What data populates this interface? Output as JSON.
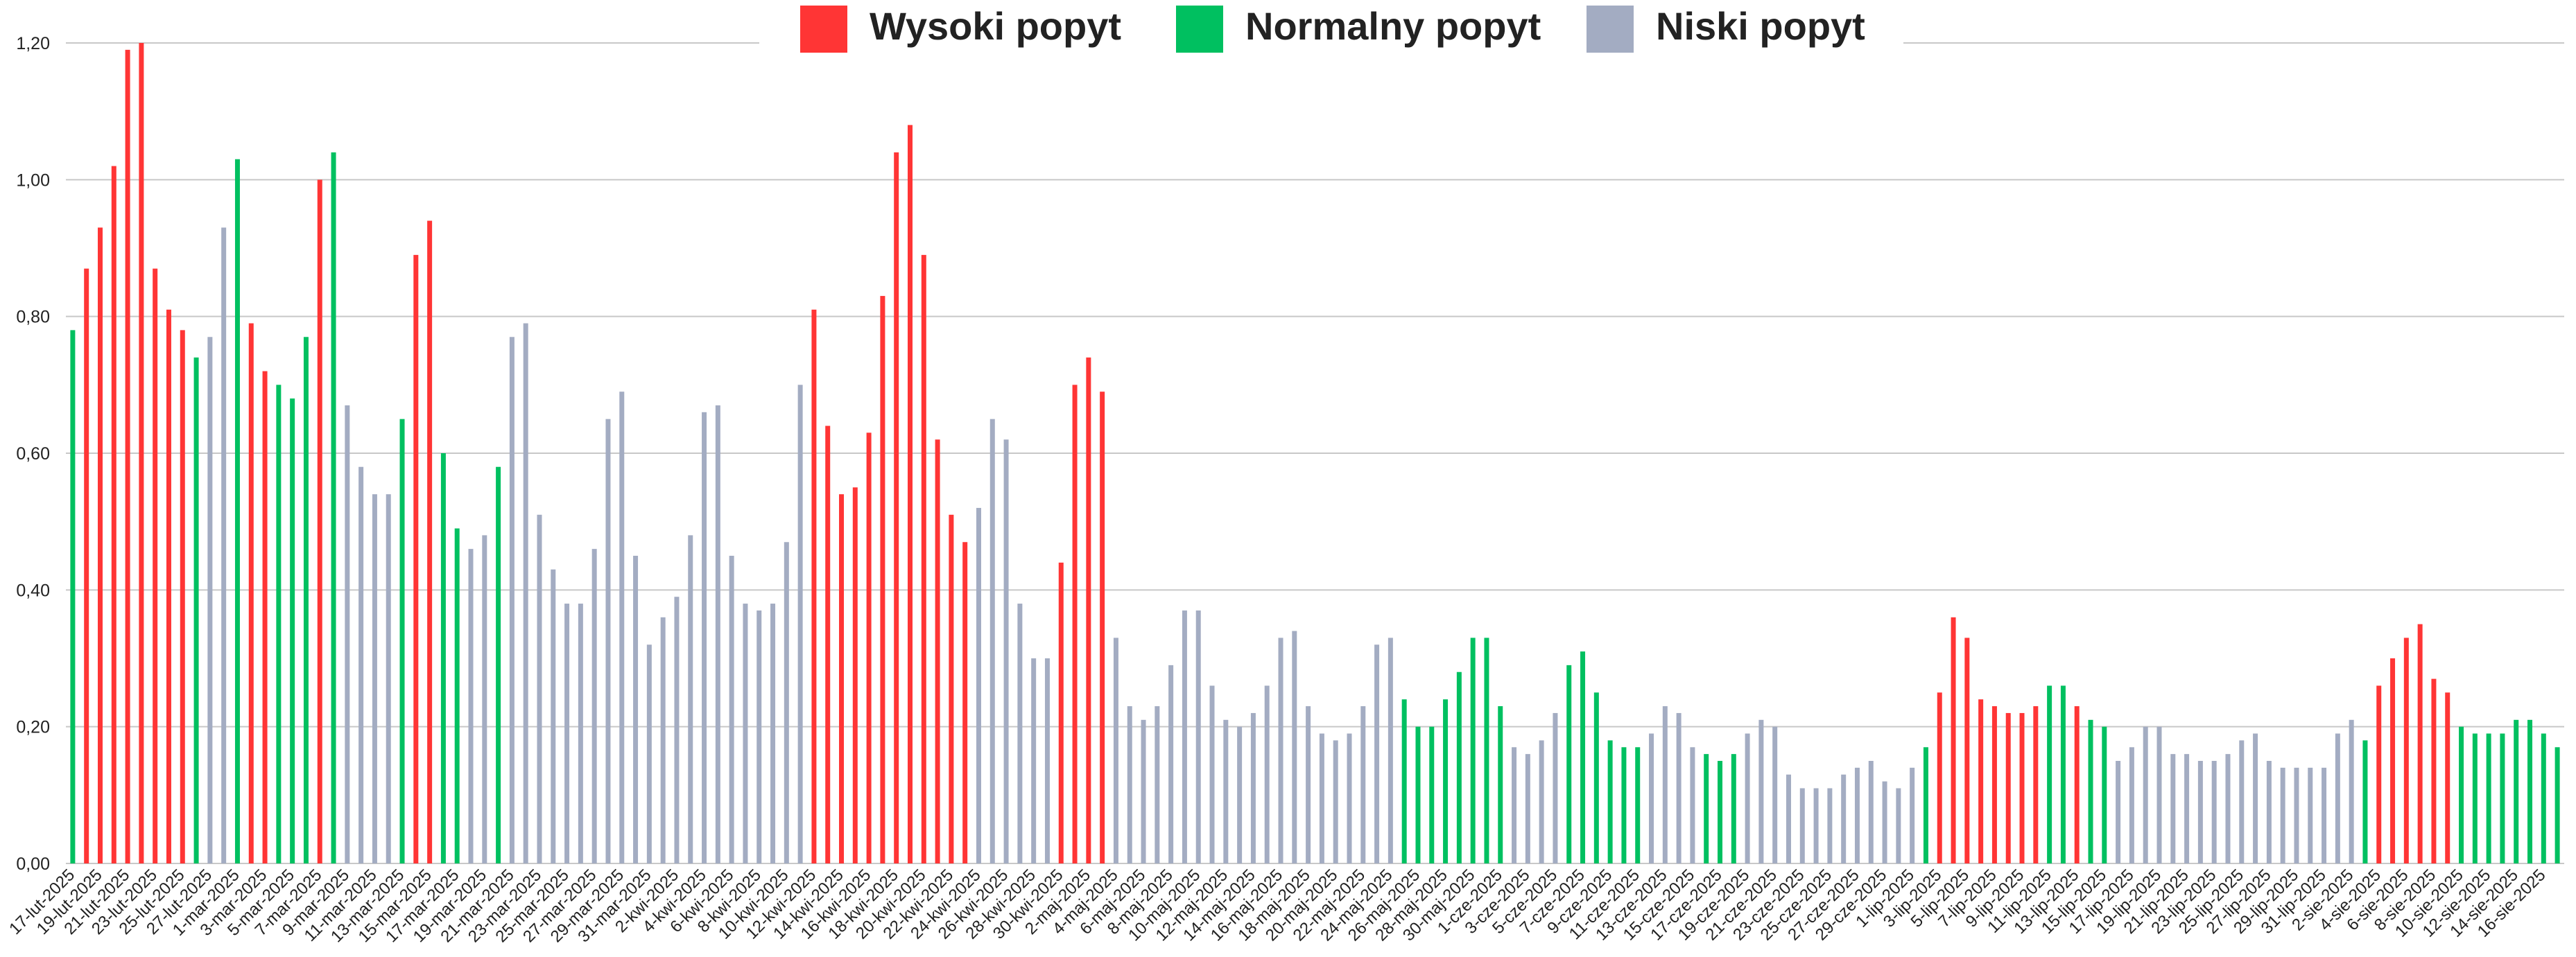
{
  "chart_data": {
    "type": "bar",
    "legend": "top",
    "grid": true,
    "ylim": [
      0,
      1.2
    ],
    "yticks": [
      {
        "value": 0,
        "label": "0,00"
      },
      {
        "value": 0.2,
        "label": "0,20"
      },
      {
        "value": 0.4,
        "label": "0,40"
      },
      {
        "value": 0.6,
        "label": "0,60"
      },
      {
        "value": 0.8,
        "label": "0,80"
      },
      {
        "value": 1.0,
        "label": "1,00"
      },
      {
        "value": 1.2,
        "label": "1,20"
      }
    ],
    "categories": [
      "17-lut-2025",
      null,
      "19-lut-2025",
      null,
      "21-lut-2025",
      null,
      "23-lut-2025",
      null,
      "25-lut-2025",
      null,
      "27-lut-2025",
      null,
      "1-mar-2025",
      null,
      "3-mar-2025",
      null,
      "5-mar-2025",
      null,
      "7-mar-2025",
      null,
      "9-mar-2025",
      null,
      "11-mar-2025",
      null,
      "13-mar-2025",
      null,
      "15-mar-2025",
      null,
      "17-mar-2025",
      null,
      "19-mar-2025",
      null,
      "21-mar-2025",
      null,
      "23-mar-2025",
      null,
      "25-mar-2025",
      null,
      "27-mar-2025",
      null,
      "29-mar-2025",
      null,
      "31-mar-2025",
      null,
      "2-kwi-2025",
      null,
      "4-kwi-2025",
      null,
      "6-kwi-2025",
      null,
      "8-kwi-2025",
      null,
      "10-kwi-2025",
      null,
      "12-kwi-2025",
      null,
      "14-kwi-2025",
      null,
      "16-kwi-2025",
      null,
      "18-kwi-2025",
      null,
      "20-kwi-2025",
      null,
      "22-kwi-2025",
      null,
      "24-kwi-2025",
      null,
      "26-kwi-2025",
      null,
      "28-kwi-2025",
      null,
      "30-kwi-2025",
      null,
      "2-maj-2025",
      null,
      "4-maj-2025",
      null,
      "6-maj-2025",
      null,
      "8-maj-2025",
      null,
      "10-maj-2025",
      null,
      "12-maj-2025",
      null,
      "14-maj-2025",
      null,
      "16-maj-2025",
      null,
      "18-maj-2025",
      null,
      "20-maj-2025",
      null,
      "22-maj-2025",
      null,
      "24-maj-2025",
      null,
      "26-maj-2025",
      null,
      "28-maj-2025",
      null,
      "30-maj-2025",
      null,
      "1-cze-2025",
      null,
      "3-cze-2025",
      null,
      "5-cze-2025",
      null,
      "7-cze-2025",
      null,
      "9-cze-2025",
      null,
      "11-cze-2025",
      null,
      "13-cze-2025",
      null,
      "15-cze-2025",
      null,
      "17-cze-2025",
      null,
      "19-cze-2025",
      null,
      "21-cze-2025",
      null,
      "23-cze-2025",
      null,
      "25-cze-2025",
      null,
      "27-cze-2025",
      null,
      "29-cze-2025",
      null,
      "1-lip-2025",
      null,
      "3-lip-2025",
      null,
      "5-lip-2025",
      null,
      "7-lip-2025",
      null,
      "9-lip-2025",
      null,
      "11-lip-2025",
      null,
      "13-lip-2025",
      null,
      "15-lip-2025",
      null,
      "17-lip-2025",
      null,
      "19-lip-2025",
      null,
      "21-lip-2025",
      null,
      "23-lip-2025",
      null,
      "25-lip-2025",
      null,
      "27-lip-2025",
      null,
      "29-lip-2025",
      null,
      "31-lip-2025",
      null,
      "2-sie-2025",
      null,
      "4-sie-2025",
      null,
      "6-sie-2025",
      null,
      "8-sie-2025",
      null,
      "10-sie-2025",
      null,
      "12-sie-2025",
      null,
      "14-sie-2025",
      null,
      "16-sie-2025",
      null
    ],
    "series": [
      {
        "name": "Wysoki popyt",
        "color": "#ff3535",
        "values": [
          null,
          0.87,
          0.93,
          1.02,
          1.19,
          1.2,
          0.87,
          0.81,
          0.78,
          null,
          null,
          null,
          null,
          0.79,
          0.72,
          null,
          null,
          null,
          1.0,
          null,
          null,
          null,
          null,
          null,
          null,
          0.89,
          0.94,
          null,
          null,
          null,
          null,
          null,
          null,
          null,
          null,
          null,
          null,
          null,
          null,
          null,
          null,
          null,
          null,
          null,
          null,
          null,
          null,
          null,
          null,
          null,
          null,
          null,
          null,
          null,
          0.81,
          0.64,
          0.54,
          0.55,
          0.63,
          0.83,
          1.04,
          1.08,
          0.89,
          0.62,
          0.51,
          0.47,
          null,
          null,
          null,
          null,
          null,
          null,
          0.44,
          0.7,
          0.74,
          0.69,
          null,
          null,
          null,
          null,
          null,
          null,
          null,
          null,
          null,
          null,
          null,
          null,
          null,
          null,
          null,
          null,
          null,
          null,
          null,
          null,
          null,
          null,
          null,
          null,
          null,
          null,
          null,
          null,
          null,
          null,
          null,
          null,
          null,
          null,
          null,
          null,
          null,
          null,
          null,
          null,
          null,
          null,
          null,
          null,
          null,
          null,
          null,
          null,
          null,
          null,
          null,
          null,
          null,
          null,
          null,
          null,
          null,
          null,
          null,
          null,
          0.25,
          0.36,
          0.33,
          0.24,
          0.23,
          0.22,
          0.22,
          0.23,
          null,
          null,
          0.23,
          null,
          null,
          null,
          null,
          null,
          null,
          null,
          null,
          null,
          null,
          null,
          null,
          null,
          null,
          null,
          null,
          null,
          null,
          null,
          null,
          null,
          0.26,
          0.3,
          0.33,
          0.35,
          0.27,
          0.25,
          null,
          null,
          null,
          null,
          null,
          null,
          null,
          null
        ]
      },
      {
        "name": "Normalny popyt",
        "color": "#00c060",
        "values": [
          0.78,
          null,
          null,
          null,
          null,
          null,
          null,
          null,
          null,
          0.74,
          null,
          null,
          1.03,
          null,
          null,
          0.7,
          0.68,
          0.77,
          null,
          1.04,
          null,
          null,
          null,
          null,
          0.65,
          null,
          null,
          0.6,
          0.49,
          null,
          null,
          0.58,
          null,
          null,
          null,
          null,
          null,
          null,
          null,
          null,
          null,
          null,
          null,
          null,
          null,
          null,
          null,
          null,
          null,
          null,
          null,
          null,
          null,
          null,
          null,
          null,
          null,
          null,
          null,
          null,
          null,
          null,
          null,
          null,
          null,
          null,
          null,
          null,
          null,
          null,
          null,
          null,
          null,
          null,
          null,
          null,
          null,
          null,
          null,
          null,
          null,
          null,
          null,
          null,
          null,
          null,
          null,
          null,
          null,
          null,
          null,
          null,
          null,
          null,
          null,
          null,
          null,
          0.24,
          0.2,
          0.2,
          0.24,
          0.28,
          0.33,
          0.33,
          0.23,
          null,
          null,
          null,
          null,
          0.29,
          0.31,
          0.25,
          0.18,
          0.17,
          0.17,
          null,
          null,
          null,
          null,
          0.16,
          0.15,
          0.16,
          null,
          null,
          null,
          null,
          null,
          null,
          null,
          null,
          null,
          null,
          null,
          null,
          null,
          0.17,
          null,
          null,
          null,
          null,
          null,
          null,
          null,
          null,
          0.26,
          0.26,
          null,
          0.21,
          0.2,
          null,
          null,
          null,
          null,
          null,
          null,
          null,
          null,
          null,
          null,
          null,
          null,
          null,
          null,
          null,
          null,
          null,
          null,
          0.18,
          null,
          null,
          null,
          null,
          null,
          null,
          0.2,
          0.19,
          0.19,
          0.19,
          0.21,
          0.21,
          0.19,
          0.17
        ]
      },
      {
        "name": "Niski popyt",
        "color": "#a3acc2",
        "values": [
          null,
          null,
          null,
          null,
          null,
          null,
          null,
          null,
          null,
          null,
          0.77,
          0.93,
          null,
          null,
          null,
          null,
          null,
          null,
          null,
          null,
          0.67,
          0.58,
          0.54,
          0.54,
          null,
          null,
          null,
          null,
          null,
          0.46,
          0.48,
          null,
          0.77,
          0.79,
          0.51,
          0.43,
          0.38,
          0.38,
          0.46,
          0.65,
          0.69,
          0.45,
          0.32,
          0.36,
          0.39,
          0.48,
          0.66,
          0.67,
          0.45,
          0.38,
          0.37,
          0.38,
          0.47,
          0.7,
          null,
          null,
          null,
          null,
          null,
          null,
          null,
          null,
          null,
          null,
          null,
          null,
          0.52,
          0.65,
          0.62,
          0.38,
          0.3,
          0.3,
          null,
          null,
          null,
          null,
          0.33,
          0.23,
          0.21,
          0.23,
          0.29,
          0.37,
          0.37,
          0.26,
          0.21,
          0.2,
          0.22,
          0.26,
          0.33,
          0.34,
          0.23,
          0.19,
          0.18,
          0.19,
          0.23,
          0.32,
          0.33,
          null,
          null,
          null,
          null,
          null,
          null,
          null,
          null,
          0.17,
          0.16,
          0.18,
          0.22,
          null,
          null,
          null,
          null,
          null,
          null,
          0.19,
          0.23,
          0.22,
          0.17,
          null,
          null,
          null,
          0.19,
          0.21,
          0.2,
          0.13,
          0.11,
          0.11,
          0.11,
          0.13,
          0.14,
          0.15,
          0.12,
          0.11,
          0.14,
          null,
          null,
          null,
          null,
          null,
          null,
          null,
          null,
          null,
          null,
          null,
          null,
          null,
          null,
          0.15,
          0.17,
          0.2,
          0.2,
          0.16,
          0.16,
          0.15,
          0.15,
          0.16,
          0.18,
          0.19,
          0.15,
          0.14,
          0.14,
          0.14,
          0.14,
          0.19,
          0.21,
          null,
          null,
          null,
          null,
          null,
          null,
          null,
          null,
          null,
          null,
          null,
          null,
          null,
          null,
          null
        ]
      }
    ]
  }
}
